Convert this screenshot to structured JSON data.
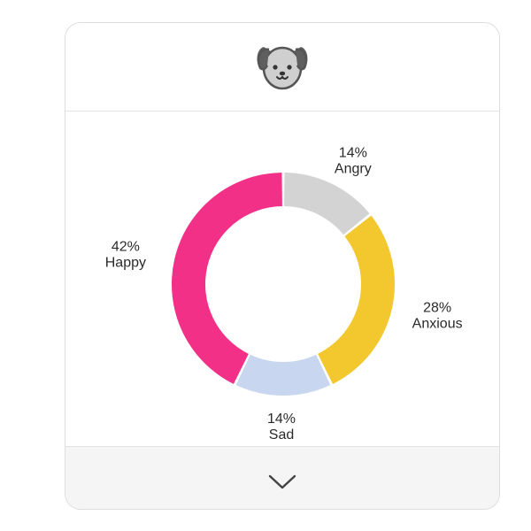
{
  "header": {
    "mascot_icon": "dog-face-icon"
  },
  "chart_data": {
    "type": "pie",
    "variant": "donut",
    "series": [
      {
        "name": "Angry",
        "percent_label": "14%",
        "value": 14,
        "color": "#d3d3d3"
      },
      {
        "name": "Anxious",
        "percent_label": "28%",
        "value": 28,
        "color": "#f3c72e"
      },
      {
        "name": "Sad",
        "percent_label": "14%",
        "value": 14,
        "color": "#c8d6ef"
      },
      {
        "name": "Happy",
        "percent_label": "42%",
        "value": 42,
        "color": "#f23087"
      }
    ],
    "start": "top",
    "direction": "clockwise"
  },
  "footer": {
    "expand_icon": "chevron-down-icon"
  }
}
